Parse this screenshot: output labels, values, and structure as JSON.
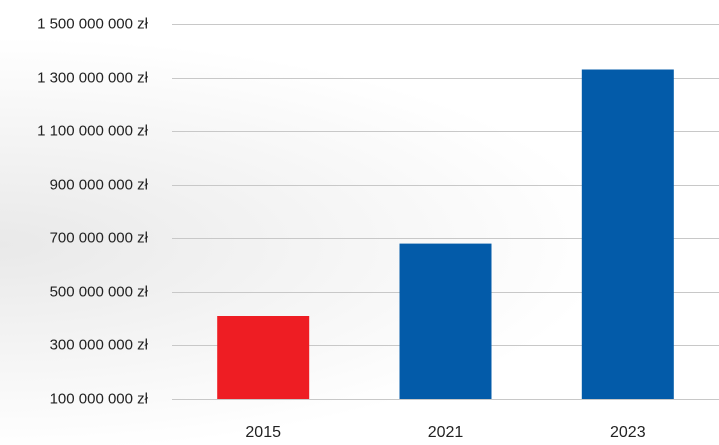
{
  "chart_data": {
    "type": "bar",
    "title": "",
    "xlabel": "",
    "ylabel": "",
    "categories": [
      "2015",
      "2021",
      "2023"
    ],
    "values": [
      410000000,
      680000000,
      1330000000
    ],
    "bar_colors": [
      "#ee1d23",
      "#035ba9",
      "#035ba9"
    ],
    "ylim": [
      100000000,
      1500000000
    ],
    "y_ticks": [
      {
        "value": 100000000,
        "label": "100 000 000 zł"
      },
      {
        "value": 300000000,
        "label": "300 000 000 zł"
      },
      {
        "value": 500000000,
        "label": "500 000 000 zł"
      },
      {
        "value": 700000000,
        "label": "700 000 000 zł"
      },
      {
        "value": 900000000,
        "label": "900 000 000 zł"
      },
      {
        "value": 1100000000,
        "label": "1 100 000 000 zł"
      },
      {
        "value": 1300000000,
        "label": "1 300 000 000 zł"
      },
      {
        "value": 1500000000,
        "label": "1 500 000 000 zł"
      }
    ],
    "grid": true,
    "legend": "none",
    "gridline_color": "#c8c8c8",
    "text_color": "#222222"
  }
}
